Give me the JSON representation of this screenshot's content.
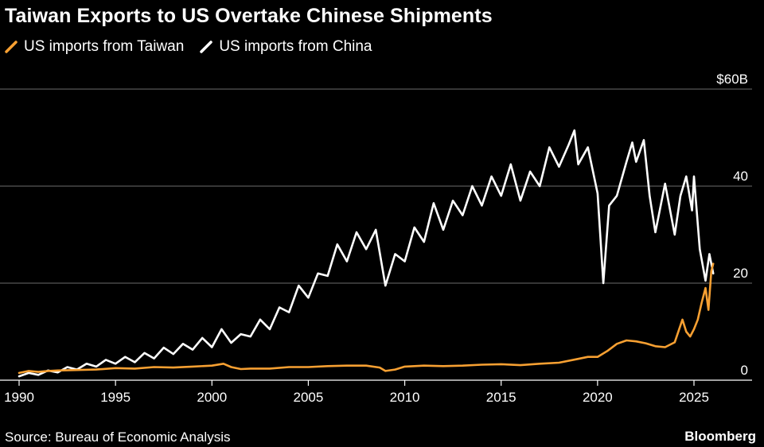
{
  "title": "Taiwan Exports to US Overtake Chinese Shipments",
  "source": "Source: Bureau of Economic Analysis",
  "brand": "Bloomberg",
  "colors": {
    "taiwan": "#f7a032",
    "china": "#ffffff",
    "grid": "#6b6b6b",
    "background": "#000000"
  },
  "chart_data": {
    "type": "line",
    "title": "Taiwan Exports to US Overtake Chinese Shipments",
    "xlabel": "",
    "ylabel": "",
    "xlim": [
      1990,
      2026.2
    ],
    "ylim": [
      0,
      60
    ],
    "y_unit": "US$ billions",
    "y_ticks": [
      {
        "value": 60,
        "label": "$60B"
      },
      {
        "value": 40,
        "label": "40"
      },
      {
        "value": 20,
        "label": "20"
      },
      {
        "value": 0,
        "label": "0"
      }
    ],
    "x_ticks": [
      {
        "value": 1990,
        "label": "1990"
      },
      {
        "value": 1995,
        "label": "1995"
      },
      {
        "value": 2000,
        "label": "2000"
      },
      {
        "value": 2005,
        "label": "2005"
      },
      {
        "value": 2010,
        "label": "2010"
      },
      {
        "value": 2015,
        "label": "2015"
      },
      {
        "value": 2020,
        "label": "2020"
      },
      {
        "value": 2025,
        "label": "2025"
      }
    ],
    "grid": "horizontal",
    "legend_position": "top-left",
    "series": [
      {
        "name": "US imports from Taiwan",
        "color": "#f7a032",
        "x": [
          1990,
          1990.5,
          1991,
          1991.5,
          1992,
          1993,
          1994,
          1995,
          1996,
          1997,
          1998,
          1999,
          2000,
          2000.6,
          2001,
          2001.5,
          2002,
          2003,
          2004,
          2005,
          2006,
          2007,
          2008,
          2008.7,
          2009,
          2009.5,
          2010,
          2011,
          2012,
          2013,
          2014,
          2015,
          2016,
          2017,
          2018,
          2019,
          2019.5,
          2020,
          2020.5,
          2021,
          2021.5,
          2022,
          2022.5,
          2023,
          2023.5,
          2024,
          2024.4,
          2024.6,
          2024.8,
          2025,
          2025.2,
          2025.4,
          2025.6,
          2025.75,
          2025.9,
          2026
        ],
        "y": [
          1.5,
          1.9,
          1.7,
          1.9,
          2.0,
          2.1,
          2.2,
          2.5,
          2.4,
          2.7,
          2.6,
          2.8,
          3.0,
          3.4,
          2.7,
          2.3,
          2.4,
          2.4,
          2.7,
          2.7,
          2.9,
          3.0,
          3.0,
          2.6,
          1.9,
          2.2,
          2.8,
          3.0,
          2.9,
          3.0,
          3.2,
          3.3,
          3.1,
          3.4,
          3.6,
          4.4,
          4.8,
          4.8,
          6.0,
          7.5,
          8.2,
          8.0,
          7.6,
          7.0,
          6.8,
          7.8,
          12.5,
          10.0,
          9.0,
          10.5,
          12.5,
          16.0,
          19.0,
          14.5,
          22.5,
          24.0
        ]
      },
      {
        "name": "US imports from China",
        "color": "#ffffff",
        "x": [
          1990,
          1990.5,
          1991,
          1991.5,
          1992,
          1992.5,
          1993,
          1993.5,
          1994,
          1994.5,
          1995,
          1995.5,
          1996,
          1996.5,
          1997,
          1997.5,
          1998,
          1998.5,
          1999,
          1999.5,
          2000,
          2000.5,
          2001,
          2001.5,
          2002,
          2002.5,
          2003,
          2003.5,
          2004,
          2004.5,
          2005,
          2005.5,
          2006,
          2006.5,
          2007,
          2007.5,
          2008,
          2008.5,
          2009,
          2009.5,
          2010,
          2010.5,
          2011,
          2011.5,
          2012,
          2012.5,
          2013,
          2013.5,
          2014,
          2014.5,
          2015,
          2015.5,
          2016,
          2016.5,
          2017,
          2017.5,
          2018,
          2018.5,
          2018.8,
          2019,
          2019.5,
          2020,
          2020.3,
          2020.6,
          2021,
          2021.5,
          2021.8,
          2022,
          2022.4,
          2022.7,
          2023,
          2023.5,
          2024,
          2024.3,
          2024.6,
          2024.9,
          2025,
          2025.3,
          2025.6,
          2025.8,
          2026
        ],
        "y": [
          0.8,
          1.5,
          1.1,
          2.0,
          1.6,
          2.7,
          2.2,
          3.4,
          2.8,
          4.2,
          3.4,
          4.8,
          3.7,
          5.6,
          4.5,
          6.7,
          5.4,
          7.5,
          6.3,
          8.7,
          6.8,
          10.5,
          7.7,
          9.5,
          9.0,
          12.5,
          10.5,
          15.0,
          14.0,
          19.5,
          17.0,
          22.0,
          21.5,
          28.0,
          24.5,
          30.5,
          27.0,
          31.0,
          19.5,
          26.0,
          24.5,
          31.5,
          28.5,
          36.5,
          31.0,
          37.0,
          34.0,
          40.0,
          36.0,
          42.0,
          38.0,
          44.5,
          37.0,
          43.0,
          40.0,
          48.0,
          44.0,
          48.5,
          51.5,
          44.5,
          48.0,
          38.5,
          20.0,
          36.0,
          38.0,
          45.0,
          49.0,
          45.0,
          49.5,
          38.0,
          30.5,
          40.5,
          30.0,
          38.0,
          42.0,
          35.0,
          42.0,
          27.0,
          20.5,
          26.0,
          22.0
        ]
      }
    ]
  }
}
